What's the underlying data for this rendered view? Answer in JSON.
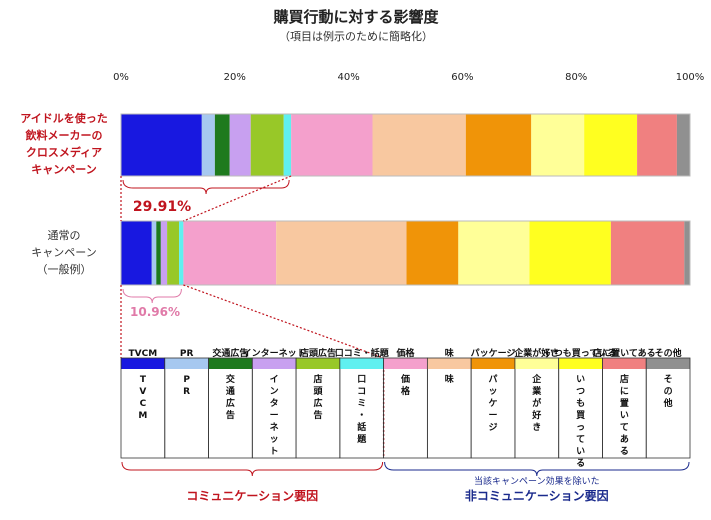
{
  "chart_data": {
    "type": "bar",
    "orientation": "horizontal",
    "stacked": "100%",
    "title": "購買行動に対する影響度",
    "subtitle": "（項目は例示のために簡略化）",
    "xticks": [
      "0%",
      "20%",
      "40%",
      "60%",
      "80%",
      "100%"
    ],
    "xlim": [
      0,
      100
    ],
    "categories": [
      {
        "name": "TVCM",
        "color": "#1818e0"
      },
      {
        "name": "PR",
        "color": "#a6c8f0"
      },
      {
        "name": "交通広告",
        "color": "#1e7a1e"
      },
      {
        "name": "インターネット",
        "color": "#c8a0f0"
      },
      {
        "name": "店頭広告",
        "color": "#98c828"
      },
      {
        "name": "口コミ・話題",
        "color": "#60f0f0"
      },
      {
        "name": "価格",
        "color": "#f4a0cc"
      },
      {
        "name": "味",
        "color": "#f8c8a0"
      },
      {
        "name": "パッケージ",
        "color": "#f09408"
      },
      {
        "name": "企業が好き",
        "color": "#ffff98"
      },
      {
        "name": "いつも買っている",
        "color": "#ffff20"
      },
      {
        "name": "店に置いてある",
        "color": "#f08080"
      },
      {
        "name": "その他",
        "color": "#909090"
      }
    ],
    "series": [
      {
        "name": "アイドルを使った飲料メーカーのクロスメディアキャンペーン",
        "label_lines": [
          "アイドルを使った",
          "飲料メーカーの",
          "クロスメディア",
          "キャンペーン"
        ],
        "values": [
          14.2,
          2.3,
          2.6,
          3.7,
          5.8,
          1.3,
          14.3,
          16.4,
          11.5,
          9.3,
          9.3,
          7.0,
          2.3
        ],
        "communication_total_label": "29.91%"
      },
      {
        "name": "通常のキャンペーン（一般例）",
        "label_lines": [
          "通常の",
          "キャンペーン",
          "（一般例）"
        ],
        "values": [
          5.4,
          0.8,
          0.8,
          1.1,
          2.1,
          0.76,
          16.3,
          22.9,
          9.1,
          12.5,
          14.3,
          12.9,
          1.0
        ],
        "communication_total_label": "10.96%"
      }
    ],
    "groups": [
      {
        "name": "コミュニケーション要因",
        "range": [
          0,
          5
        ]
      },
      {
        "name": "非コミュニケーション要因",
        "note": "当該キャンペーン効果を除いた",
        "range": [
          6,
          12
        ]
      }
    ],
    "grid": false,
    "legend": "bottom-table"
  }
}
